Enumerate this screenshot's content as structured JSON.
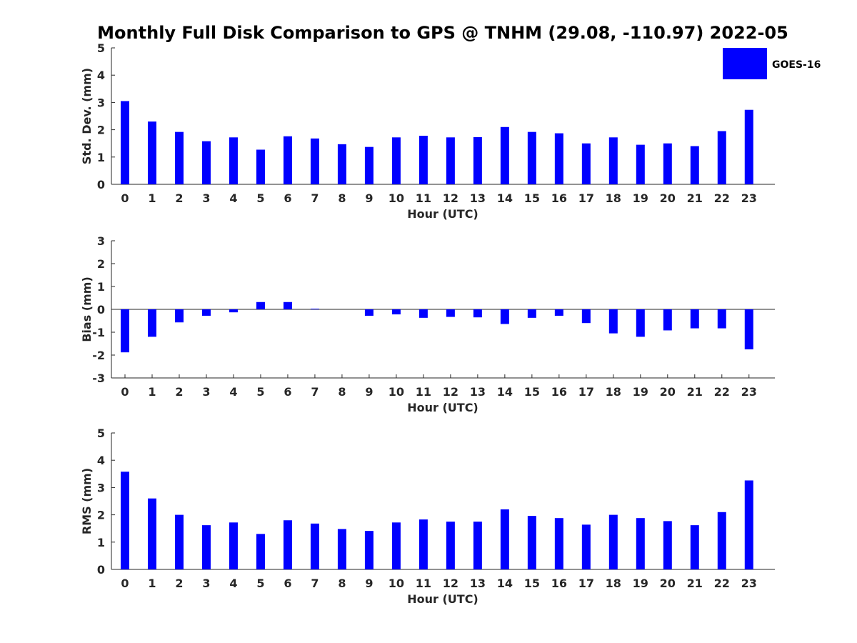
{
  "title": "Monthly Full Disk Comparison to GPS @ TNHM (29.08, -110.97) 2022-05",
  "legend": {
    "label": "GOES-16",
    "color": "#0000ff"
  },
  "chart_data": [
    {
      "type": "bar",
      "ylabel": "Std. Dev. (mm)",
      "xlabel": "Hour (UTC)",
      "ylim": [
        0,
        5
      ],
      "yticks": [
        0,
        1,
        2,
        3,
        4,
        5
      ],
      "categories": [
        "0",
        "1",
        "2",
        "3",
        "4",
        "5",
        "6",
        "7",
        "8",
        "9",
        "10",
        "11",
        "12",
        "13",
        "14",
        "15",
        "16",
        "17",
        "18",
        "19",
        "20",
        "21",
        "22",
        "23"
      ],
      "series": [
        {
          "name": "GOES-16",
          "values": [
            3.05,
            2.3,
            1.92,
            1.58,
            1.72,
            1.27,
            1.76,
            1.68,
            1.47,
            1.37,
            1.72,
            1.78,
            1.72,
            1.73,
            2.1,
            1.92,
            1.87,
            1.5,
            1.72,
            1.45,
            1.5,
            1.4,
            1.95,
            2.73
          ]
        }
      ]
    },
    {
      "type": "bar",
      "ylabel": "Bias (mm)",
      "xlabel": "Hour (UTC)",
      "ylim": [
        -3,
        3
      ],
      "yticks": [
        -3,
        -2,
        -1,
        0,
        1,
        2,
        3
      ],
      "categories": [
        "0",
        "1",
        "2",
        "3",
        "4",
        "5",
        "6",
        "7",
        "8",
        "9",
        "10",
        "11",
        "12",
        "13",
        "14",
        "15",
        "16",
        "17",
        "18",
        "19",
        "20",
        "21",
        "22",
        "23"
      ],
      "series": [
        {
          "name": "GOES-16",
          "values": [
            -1.88,
            -1.2,
            -0.57,
            -0.28,
            -0.13,
            0.32,
            0.32,
            0.03,
            0.0,
            -0.28,
            -0.22,
            -0.37,
            -0.33,
            -0.35,
            -0.64,
            -0.37,
            -0.28,
            -0.6,
            -1.05,
            -1.2,
            -0.92,
            -0.83,
            -0.83,
            -1.75
          ]
        }
      ]
    },
    {
      "type": "bar",
      "ylabel": "RMS (mm)",
      "xlabel": "Hour (UTC)",
      "ylim": [
        0,
        5
      ],
      "yticks": [
        0,
        1,
        2,
        3,
        4,
        5
      ],
      "categories": [
        "0",
        "1",
        "2",
        "3",
        "4",
        "5",
        "6",
        "7",
        "8",
        "9",
        "10",
        "11",
        "12",
        "13",
        "14",
        "15",
        "16",
        "17",
        "18",
        "19",
        "20",
        "21",
        "22",
        "23"
      ],
      "series": [
        {
          "name": "GOES-16",
          "values": [
            3.58,
            2.6,
            2.0,
            1.62,
            1.72,
            1.3,
            1.8,
            1.68,
            1.48,
            1.41,
            1.72,
            1.83,
            1.75,
            1.75,
            2.2,
            1.96,
            1.88,
            1.64,
            2.0,
            1.88,
            1.77,
            1.62,
            2.1,
            3.26
          ]
        }
      ]
    }
  ]
}
